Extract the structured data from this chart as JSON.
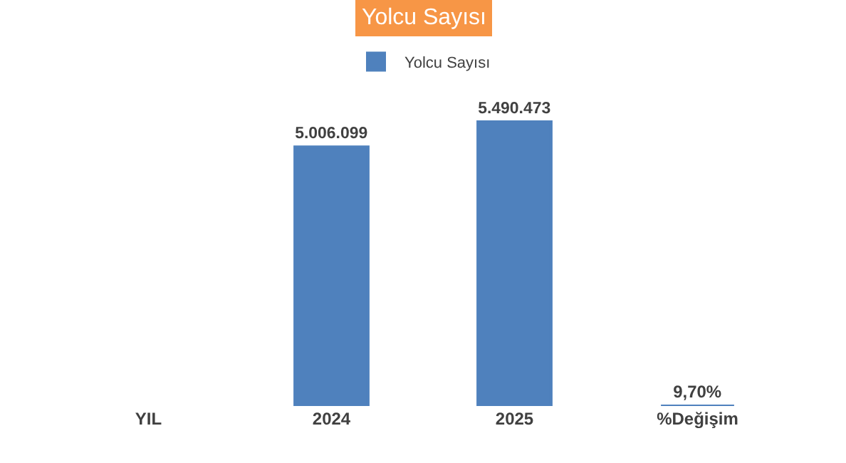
{
  "chart_data": {
    "type": "bar",
    "title": "Yolcu Sayısı",
    "categories": [
      "YIL",
      "2024",
      "2025",
      "%Değişim"
    ],
    "series": [
      {
        "name": "Yolcu Sayısı",
        "color": "#4f81bd",
        "values": [
          null,
          5006099,
          5490473,
          9.7
        ],
        "value_labels": [
          null,
          "5.006.099",
          "5.490.473",
          "9,70%"
        ]
      }
    ],
    "legend": "top"
  }
}
